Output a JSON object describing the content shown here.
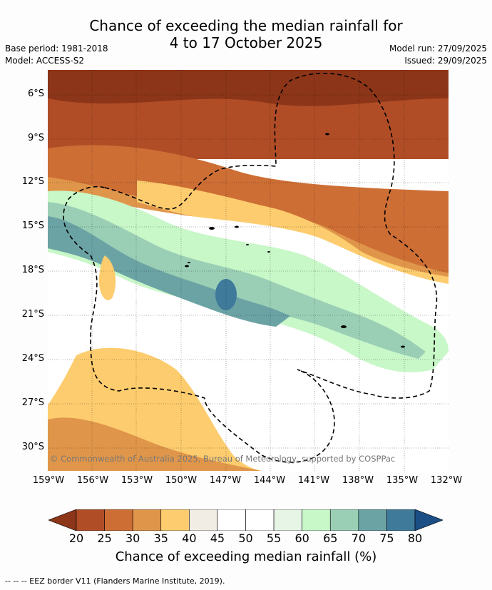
{
  "title_line1": "Chance of exceeding the median rainfall for",
  "title_line2": "4 to 17 October 2025",
  "meta_left": [
    "Base period: 1981-2018",
    "Model: ACCESS-S2"
  ],
  "meta_right": [
    "Model run: 27/09/2025",
    "Issued: 29/09/2025"
  ],
  "credit": "© Commonwealth of Australia 2025, Bureau of Meteorology, supported by COSPPac",
  "lat_labels": [
    "6°S",
    "9°S",
    "12°S",
    "15°S",
    "18°S",
    "21°S",
    "24°S",
    "27°S",
    "30°S"
  ],
  "lon_labels": [
    "159°W",
    "156°W",
    "153°W",
    "150°W",
    "147°W",
    "144°W",
    "141°W",
    "138°W",
    "135°W",
    "132°W"
  ],
  "colorbar": {
    "ticks": [
      "20",
      "25",
      "30",
      "35",
      "40",
      "45",
      "50",
      "55",
      "60",
      "65",
      "70",
      "75",
      "80"
    ],
    "colors": [
      "#8c3518",
      "#b04d27",
      "#cd6e35",
      "#e0964a",
      "#fdcc6e",
      "#f1ede4",
      "#ffffff",
      "#ffffff",
      "#e6f5e6",
      "#c8f7c8",
      "#9acfb6",
      "#6ba3a5",
      "#3f7a9b",
      "#1b4e84"
    ],
    "label": "Chance of exceeding median rainfall (%)"
  },
  "footer": "--  --  -- EEZ border V11 (Flanders Marine Institute, 2019)."
}
